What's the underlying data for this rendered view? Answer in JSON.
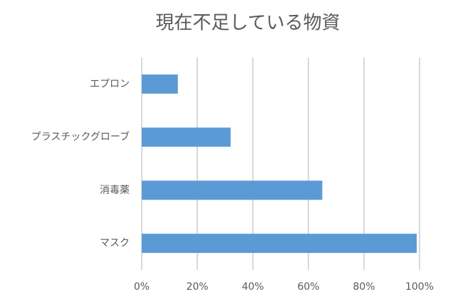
{
  "chart_data": {
    "type": "bar",
    "orientation": "horizontal",
    "title": "現在不足している物資",
    "categories": [
      "エプロン",
      "プラスチックグローブ",
      "消毒薬",
      "マスク"
    ],
    "values": [
      13,
      32,
      65,
      99
    ],
    "color": "#5b9bd5",
    "xlim": [
      0,
      100
    ],
    "xticks": [
      {
        "value": 0,
        "label": "0%"
      },
      {
        "value": 20,
        "label": "20%"
      },
      {
        "value": 40,
        "label": "40%"
      },
      {
        "value": 60,
        "label": "60%"
      },
      {
        "value": 80,
        "label": "80%"
      },
      {
        "value": 100,
        "label": "100%"
      }
    ],
    "grid": true
  }
}
